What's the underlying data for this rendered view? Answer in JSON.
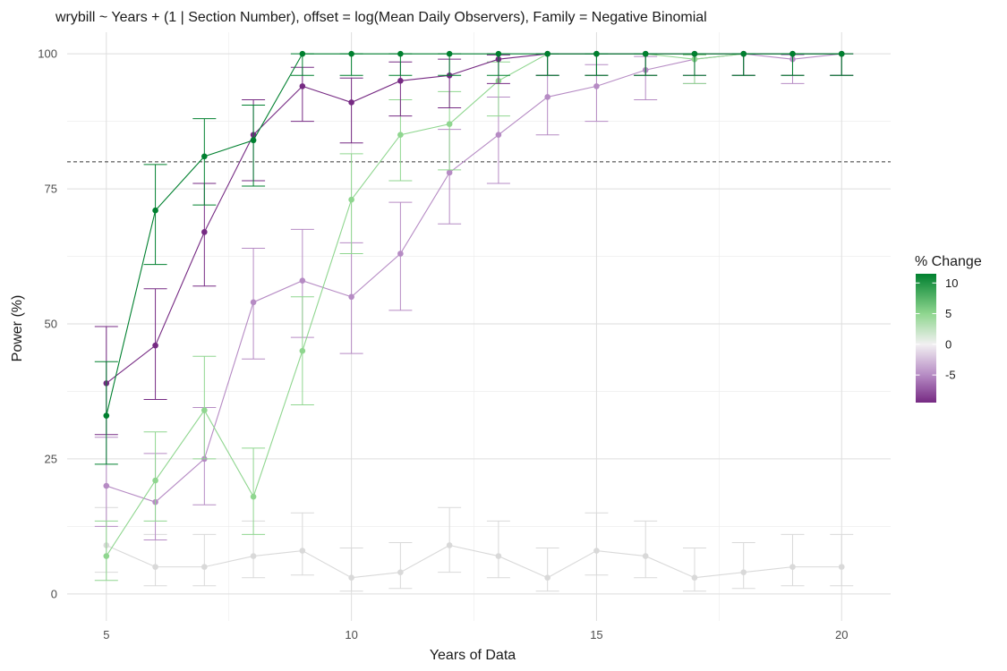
{
  "chart_data": {
    "type": "line",
    "title": "wrybill ~ Years + (1 | Section Number), offset = log(Mean Daily Observers), Family = Negative Binomial",
    "xlabel": "Years of Data",
    "ylabel": "Power (%)",
    "xlim": [
      4.2,
      21
    ],
    "ylim": [
      -5,
      104
    ],
    "x_ticks": [
      5,
      10,
      15,
      20
    ],
    "y_ticks": [
      0,
      25,
      50,
      75,
      100
    ],
    "grid": true,
    "reference_line": {
      "y": 80,
      "style": "dashed"
    },
    "legend": {
      "title": "% Change",
      "position": "right",
      "type": "colorbar",
      "ticks": [
        10,
        5,
        0,
        -5
      ],
      "range": [
        -9.5,
        11.5
      ],
      "gradient": [
        {
          "value": -9.5,
          "color": "#762a83"
        },
        {
          "value": -5,
          "color": "#b68bc4"
        },
        {
          "value": 0,
          "color": "#f2f0f2"
        },
        {
          "value": 5,
          "color": "#8fd68f"
        },
        {
          "value": 11.5,
          "color": "#00802f"
        }
      ]
    },
    "x": [
      5,
      6,
      7,
      8,
      9,
      10,
      11,
      12,
      13,
      14,
      15,
      16,
      17,
      18,
      19,
      20
    ],
    "series": [
      {
        "change": 0,
        "color": "#d9d9d9",
        "values": [
          9,
          5,
          5,
          7,
          8,
          3,
          4,
          9,
          7,
          3,
          8,
          7,
          3,
          4,
          5,
          5
        ],
        "lower": [
          4,
          1.5,
          1.5,
          3,
          3.5,
          0.5,
          1,
          4,
          3,
          0.5,
          3.5,
          3,
          0.5,
          1,
          1.5,
          1.5
        ],
        "upper": [
          16,
          11,
          11,
          13.5,
          15,
          8.5,
          9.5,
          16,
          13.5,
          8.5,
          15,
          13.5,
          8.5,
          9.5,
          11,
          11
        ]
      },
      {
        "change": -5,
        "color": "#b68bc4",
        "values": [
          20,
          17,
          25,
          54,
          58,
          55,
          63,
          78,
          85,
          92,
          94,
          97,
          99,
          100,
          99,
          100
        ],
        "lower": [
          12.5,
          10,
          16.5,
          43.5,
          47.5,
          44.5,
          52.5,
          68.5,
          76,
          85,
          87.5,
          91.5,
          94.5,
          96,
          94.5,
          96
        ],
        "upper": [
          29,
          26,
          34.5,
          64,
          67.5,
          65,
          72.5,
          86,
          92,
          96,
          98,
          99.5,
          99.8,
          100,
          99.8,
          100
        ]
      },
      {
        "change": 5,
        "color": "#8fd68f",
        "values": [
          7,
          21,
          34,
          18,
          45,
          73,
          85,
          87,
          95,
          100,
          100,
          100,
          99,
          100,
          100,
          100
        ],
        "lower": [
          2.5,
          13.5,
          25,
          11,
          35,
          63,
          76.5,
          78.5,
          88.5,
          96,
          96,
          96,
          94.5,
          96,
          96,
          96
        ],
        "upper": [
          13.5,
          30,
          44,
          27,
          55,
          81.5,
          91.5,
          93,
          98.5,
          100,
          100,
          100,
          99.8,
          100,
          100,
          100
        ]
      },
      {
        "change": -10,
        "color": "#762a83",
        "values": [
          39,
          46,
          67,
          85,
          94,
          91,
          95,
          96,
          99,
          100,
          100,
          100,
          100,
          100,
          100,
          100
        ],
        "lower": [
          29.5,
          36,
          57,
          76.5,
          87.5,
          83.5,
          88.5,
          90,
          94.5,
          96,
          96,
          96,
          96,
          96,
          96,
          96
        ],
        "upper": [
          49.5,
          56.5,
          76,
          91.5,
          97.5,
          95.5,
          98.5,
          99,
          99.8,
          100,
          100,
          100,
          100,
          100,
          100,
          100
        ]
      },
      {
        "change": 10,
        "color": "#00802f",
        "values": [
          33,
          71,
          81,
          84,
          100,
          100,
          100,
          100,
          100,
          100,
          100,
          100,
          100,
          100,
          100,
          100
        ],
        "lower": [
          24,
          61,
          72,
          75.5,
          96,
          96,
          96,
          96,
          96,
          96,
          96,
          96,
          96,
          96,
          96,
          96
        ],
        "upper": [
          43,
          79.5,
          88,
          90.5,
          100,
          100,
          100,
          100,
          100,
          100,
          100,
          100,
          100,
          100,
          100,
          100
        ]
      }
    ]
  }
}
